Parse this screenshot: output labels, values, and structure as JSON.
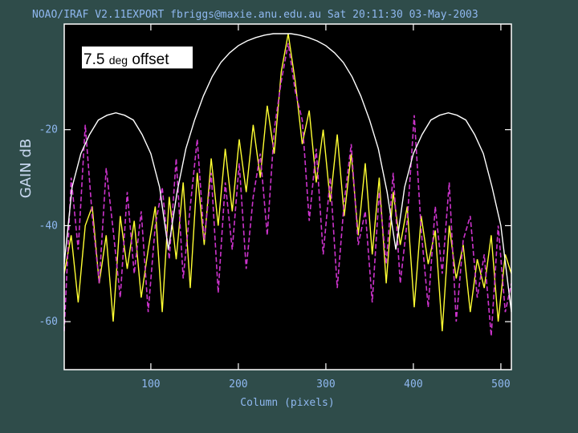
{
  "header": {
    "title": "NOAO/IRAF V2.11EXPORT fbriggs@maxie.anu.edu.au Sat 20:11:30 03-May-2003"
  },
  "annotation": {
    "part1": "7.5 ",
    "part2": "deg",
    "part3": " offset"
  },
  "colors": {
    "background": "#2f4c4a",
    "plot": "#000000",
    "frame": "#ffffff",
    "series1": "#ffff33",
    "series2": "#cc33cc",
    "envelope": "#ffffff"
  },
  "chart_data": {
    "type": "line",
    "title": "NOAO/IRAF V2.11EXPORT fbriggs@maxie.anu.edu.au Sat 20:11:30 03-May-2003",
    "xlabel": "Column (pixels)",
    "ylabel": "GAIN dB",
    "xlim": [
      1,
      512
    ],
    "ylim": [
      -70,
      2
    ],
    "xticks": [
      100,
      200,
      300,
      400,
      500
    ],
    "yticks": [
      -20,
      -40,
      -60
    ],
    "grid": false,
    "series": [
      {
        "style": "solid",
        "color": "#ffff33",
        "x": [
          1,
          9,
          17,
          25,
          33,
          41,
          49,
          57,
          65,
          73,
          81,
          89,
          97,
          105,
          113,
          121,
          129,
          137,
          145,
          153,
          161,
          169,
          177,
          185,
          193,
          201,
          209,
          217,
          225,
          233,
          241,
          249,
          257,
          265,
          273,
          281,
          289,
          297,
          305,
          313,
          321,
          329,
          337,
          345,
          353,
          361,
          369,
          377,
          385,
          393,
          401,
          409,
          417,
          425,
          433,
          441,
          449,
          457,
          465,
          473,
          481,
          489,
          497,
          505,
          512
        ],
        "y": [
          -50,
          -42,
          -56,
          -40,
          -36,
          -52,
          -42,
          -60,
          -38,
          -49,
          -39,
          -55,
          -45,
          -36,
          -58,
          -34,
          -47,
          -31,
          -53,
          -29,
          -44,
          -26,
          -40,
          -24,
          -37,
          -22,
          -33,
          -19,
          -30,
          -15,
          -25,
          -8,
          0,
          -10,
          -23,
          -16,
          -31,
          -20,
          -35,
          -21,
          -38,
          -25,
          -42,
          -27,
          -46,
          -30,
          -52,
          -33,
          -44,
          -36,
          -57,
          -38,
          -48,
          -41,
          -62,
          -40,
          -51,
          -44,
          -58,
          -47,
          -53,
          -42,
          -60,
          -46,
          -50
        ]
      },
      {
        "style": "dashed",
        "color": "#cc33cc",
        "x": [
          1,
          9,
          17,
          25,
          33,
          41,
          49,
          57,
          65,
          73,
          81,
          89,
          97,
          105,
          113,
          121,
          129,
          137,
          145,
          153,
          161,
          169,
          177,
          185,
          193,
          201,
          209,
          217,
          225,
          233,
          241,
          249,
          257,
          265,
          273,
          281,
          289,
          297,
          305,
          313,
          321,
          329,
          337,
          345,
          353,
          361,
          369,
          377,
          385,
          393,
          401,
          409,
          417,
          425,
          433,
          441,
          449,
          457,
          465,
          473,
          481,
          489,
          497,
          505,
          512
        ],
        "y": [
          -62,
          -30,
          -45,
          -19,
          -38,
          -52,
          -28,
          -41,
          -55,
          -33,
          -50,
          -37,
          -58,
          -40,
          -32,
          -47,
          -26,
          -51,
          -36,
          -22,
          -43,
          -29,
          -54,
          -31,
          -45,
          -27,
          -49,
          -34,
          -25,
          -42,
          -20,
          -10,
          -2,
          -12,
          -18,
          -39,
          -24,
          -46,
          -30,
          -53,
          -35,
          -23,
          -44,
          -37,
          -56,
          -33,
          -48,
          -29,
          -52,
          -39,
          -17,
          -41,
          -57,
          -36,
          -50,
          -31,
          -60,
          -43,
          -38,
          -55,
          -46,
          -63,
          -40,
          -58,
          -52
        ]
      },
      {
        "style": "solid",
        "color": "#ffffff",
        "x": [
          1,
          10,
          20,
          30,
          40,
          50,
          60,
          70,
          80,
          90,
          100,
          110,
          120,
          130,
          140,
          150,
          160,
          170,
          180,
          190,
          200,
          210,
          220,
          230,
          240,
          250,
          260,
          270,
          280,
          290,
          300,
          310,
          320,
          330,
          340,
          350,
          360,
          370,
          380,
          390,
          400,
          410,
          420,
          430,
          440,
          450,
          460,
          470,
          480,
          490,
          500,
          512
        ],
        "y": [
          -48,
          -32,
          -25,
          -21,
          -18,
          -17,
          -16.5,
          -17,
          -18,
          -21,
          -25,
          -32,
          -45,
          -33,
          -24,
          -18,
          -13,
          -9,
          -6,
          -4,
          -2.5,
          -1.5,
          -0.8,
          -0.3,
          0,
          0,
          0,
          -0.3,
          -0.8,
          -1.5,
          -2.5,
          -4,
          -6,
          -9,
          -13,
          -18,
          -24,
          -33,
          -45,
          -32,
          -25,
          -21,
          -18,
          -17,
          -16.5,
          -17,
          -18,
          -21,
          -25,
          -32,
          -40,
          -58
        ]
      }
    ]
  }
}
